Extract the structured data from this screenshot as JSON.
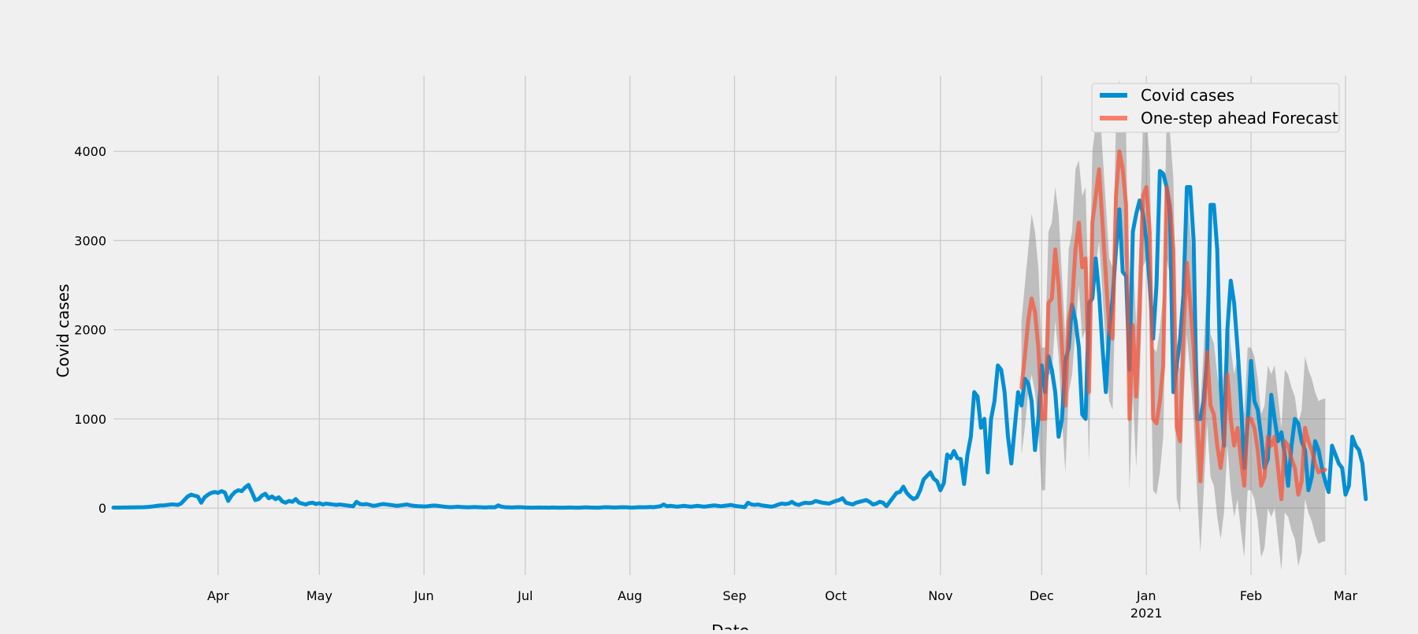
{
  "chart_data": {
    "type": "line",
    "title": "",
    "xlabel": "Date",
    "ylabel": "Covid cases",
    "ylim": [
      -750,
      4850
    ],
    "xlim": [
      "2020-03-01",
      "2021-03-01"
    ],
    "grid": true,
    "legend_position": "top-right",
    "y_ticks": [
      0,
      1000,
      2000,
      3000,
      4000
    ],
    "y_tick_labels": [
      "0",
      "1000",
      "2000",
      "3000",
      "4000"
    ],
    "x_ticks": [
      {
        "date": "2020-04-01",
        "label": "Apr"
      },
      {
        "date": "2020-05-01",
        "label": "May"
      },
      {
        "date": "2020-06-01",
        "label": "Jun"
      },
      {
        "date": "2020-07-01",
        "label": "Jul"
      },
      {
        "date": "2020-08-01",
        "label": "Aug"
      },
      {
        "date": "2020-09-01",
        "label": "Sep"
      },
      {
        "date": "2020-10-01",
        "label": "Oct"
      },
      {
        "date": "2020-11-01",
        "label": "Nov"
      },
      {
        "date": "2020-12-01",
        "label": "Dec"
      },
      {
        "date": "2021-01-01",
        "label": "Jan"
      },
      {
        "date": "2021-02-01",
        "label": "Feb"
      },
      {
        "date": "2021-03-01",
        "label": "Mar"
      }
    ],
    "x_year_label": {
      "date": "2021-01-01",
      "label": "2021"
    },
    "colors": {
      "actual": "#008fd5",
      "forecast": "#fc4f30",
      "ci": "#808080",
      "grid": "#cbcbcb",
      "background": "#f0f0f0"
    },
    "series": [
      {
        "name": "Covid cases",
        "start_date": "2020-03-01",
        "step_days": 1,
        "values": [
          5,
          5,
          5,
          6,
          6,
          7,
          7,
          8,
          9,
          10,
          12,
          15,
          20,
          25,
          30,
          30,
          35,
          40,
          40,
          35,
          50,
          90,
          130,
          150,
          140,
          130,
          60,
          120,
          150,
          170,
          180,
          170,
          190,
          175,
          80,
          140,
          180,
          200,
          190,
          230,
          260,
          180,
          90,
          100,
          140,
          160,
          110,
          130,
          100,
          120,
          75,
          60,
          80,
          70,
          100,
          60,
          50,
          40,
          55,
          60,
          45,
          55,
          40,
          50,
          45,
          40,
          35,
          40,
          35,
          30,
          25,
          20,
          70,
          45,
          40,
          45,
          35,
          25,
          30,
          40,
          45,
          40,
          35,
          30,
          25,
          30,
          35,
          40,
          30,
          25,
          22,
          20,
          18,
          20,
          25,
          28,
          25,
          20,
          15,
          12,
          10,
          12,
          15,
          12,
          10,
          8,
          10,
          12,
          10,
          8,
          6,
          8,
          10,
          8,
          30,
          15,
          10,
          8,
          6,
          8,
          10,
          8,
          6,
          5,
          4,
          5,
          6,
          5,
          5,
          4,
          6,
          5,
          4,
          4,
          5,
          6,
          5,
          4,
          4,
          6,
          8,
          6,
          5,
          4,
          4,
          8,
          10,
          8,
          6,
          6,
          8,
          10,
          8,
          6,
          5,
          8,
          10,
          8,
          10,
          12,
          10,
          15,
          20,
          40,
          20,
          25,
          20,
          15,
          20,
          25,
          20,
          15,
          20,
          25,
          20,
          15,
          20,
          25,
          30,
          25,
          20,
          25,
          30,
          35,
          25,
          20,
          15,
          10,
          60,
          40,
          35,
          40,
          30,
          25,
          20,
          15,
          25,
          40,
          50,
          45,
          50,
          70,
          45,
          35,
          50,
          60,
          55,
          60,
          80,
          70,
          60,
          55,
          50,
          65,
          80,
          90,
          110,
          60,
          50,
          40,
          60,
          70,
          80,
          90,
          70,
          40,
          50,
          70,
          60,
          20,
          70,
          120,
          170,
          180,
          240,
          170,
          130,
          100,
          120,
          200,
          320,
          360,
          400,
          330,
          300,
          200,
          280,
          600,
          560,
          640,
          560,
          550,
          270,
          600,
          800,
          1300,
          1250,
          900,
          1000,
          400,
          1000,
          1200,
          1600,
          1550,
          1300,
          800,
          500,
          900,
          1300,
          1150,
          1450,
          1400,
          1200,
          650,
          1000,
          1600,
          1300,
          1700,
          1550,
          1300,
          800,
          1000,
          1650,
          1800,
          2280,
          2100,
          1800,
          1050,
          1000,
          2300,
          2350,
          2800,
          2400,
          1800,
          1300,
          2000,
          2350,
          2900,
          3350,
          2650,
          2600,
          1550,
          3100,
          3300,
          3450,
          3300,
          3000,
          2500,
          1900,
          2500,
          3780,
          3750,
          3600,
          3300,
          1300,
          1600,
          1900,
          2400,
          3600,
          3600,
          3000,
          1000,
          1000,
          1200,
          1700,
          3400,
          3400,
          2900,
          1400,
          700,
          2000,
          2550,
          2300,
          1800,
          1200,
          450,
          950,
          1650,
          1200,
          1100,
          800,
          450,
          550,
          1270,
          1000,
          750,
          850,
          600,
          250,
          700,
          1000,
          950,
          750,
          650,
          200,
          350,
          750,
          650,
          450,
          300,
          180,
          700,
          600,
          500,
          450,
          150,
          250,
          800,
          700,
          650,
          500,
          100
        ]
      },
      {
        "name": "One-step ahead Forecast",
        "start_date": "2020-11-25",
        "step_days": 1,
        "values": [
          1350,
          1700,
          2100,
          2350,
          2200,
          1800,
          1000,
          1000,
          2300,
          2350,
          2900,
          2500,
          1800,
          1150,
          2100,
          2300,
          2900,
          3200,
          2700,
          2800,
          1300,
          3200,
          3500,
          3800,
          3200,
          2600,
          2000,
          1900,
          3500,
          4000,
          3800,
          3400,
          1000,
          2050,
          1250,
          2200,
          3500,
          3600,
          3100,
          1000,
          950,
          1200,
          1600,
          3600,
          3400,
          2900,
          900,
          750,
          2000,
          2750,
          2300,
          1800,
          1000,
          300,
          1000,
          1750,
          1150,
          1050,
          700,
          450,
          750,
          1500,
          1000,
          700,
          900,
          550,
          250,
          1000,
          1000,
          900,
          650,
          250,
          350,
          800,
          700,
          800,
          450,
          100,
          750,
          700,
          550,
          450,
          150,
          300,
          900,
          750,
          650,
          500,
          400,
          420,
          430
        ]
      },
      {
        "name": "confidence interval",
        "start_date": "2020-11-25",
        "step_days": 1,
        "upper": [
          2100,
          2500,
          2900,
          3300,
          3100,
          2700,
          1800,
          1800,
          3100,
          3200,
          3600,
          3300,
          2600,
          1900,
          2900,
          3100,
          3800,
          3900,
          3500,
          3600,
          2100,
          4000,
          4300,
          4600,
          4000,
          3400,
          2800,
          2700,
          4300,
          4800,
          4600,
          4200,
          1800,
          2850,
          2050,
          3000,
          4300,
          4400,
          3900,
          1800,
          1750,
          2000,
          2400,
          4400,
          4200,
          3700,
          1700,
          1550,
          2800,
          3550,
          3100,
          2600,
          1800,
          1100,
          1800,
          2550,
          1950,
          1850,
          1500,
          1250,
          1550,
          2300,
          1800,
          1500,
          1700,
          1350,
          1050,
          1800,
          1800,
          1700,
          1450,
          1050,
          1150,
          1600,
          1500,
          1600,
          1250,
          900,
          1550,
          1500,
          1350,
          1250,
          950,
          1100,
          1700,
          1550,
          1450,
          1300,
          1200,
          1220,
          1230
        ],
        "lower": [
          600,
          900,
          1300,
          1500,
          1300,
          900,
          200,
          200,
          1500,
          1500,
          2100,
          1700,
          1000,
          400,
          1300,
          1500,
          2000,
          2500,
          1900,
          2000,
          500,
          2400,
          2700,
          3000,
          2400,
          1800,
          1200,
          1100,
          2700,
          3200,
          3000,
          2600,
          200,
          1250,
          450,
          1400,
          2700,
          2800,
          2300,
          200,
          150,
          400,
          800,
          2800,
          2600,
          2100,
          100,
          -50,
          1200,
          1950,
          1500,
          1000,
          200,
          -500,
          200,
          950,
          350,
          250,
          -100,
          -350,
          -50,
          700,
          200,
          -100,
          100,
          -250,
          -550,
          200,
          200,
          100,
          -150,
          -550,
          -450,
          0,
          -100,
          0,
          -350,
          -700,
          -50,
          -100,
          -250,
          -350,
          -650,
          -500,
          100,
          -50,
          -150,
          -300,
          -400,
          -380,
          -370
        ]
      }
    ]
  }
}
